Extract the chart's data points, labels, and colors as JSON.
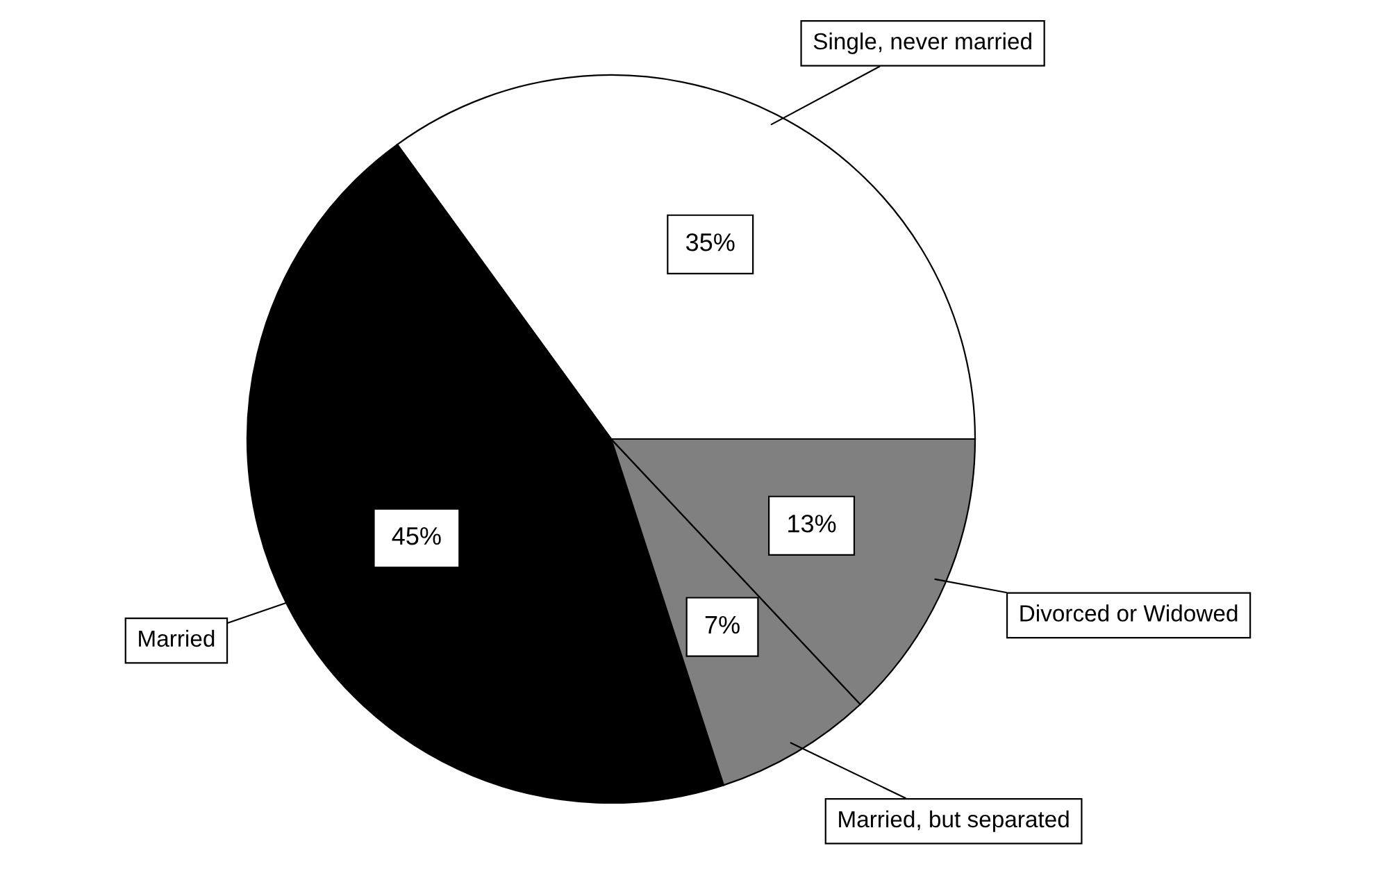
{
  "chart_data": {
    "type": "pie",
    "categories": [
      "Single, never married",
      "Married",
      "Married, but separated",
      "Divorced or Widowed"
    ],
    "values": [
      35,
      45,
      7,
      13
    ],
    "colors": [
      "#ffffff",
      "#000000",
      "#808080",
      "#808080"
    ],
    "value_labels": [
      "35%",
      "45%",
      "7%",
      "13%"
    ]
  }
}
